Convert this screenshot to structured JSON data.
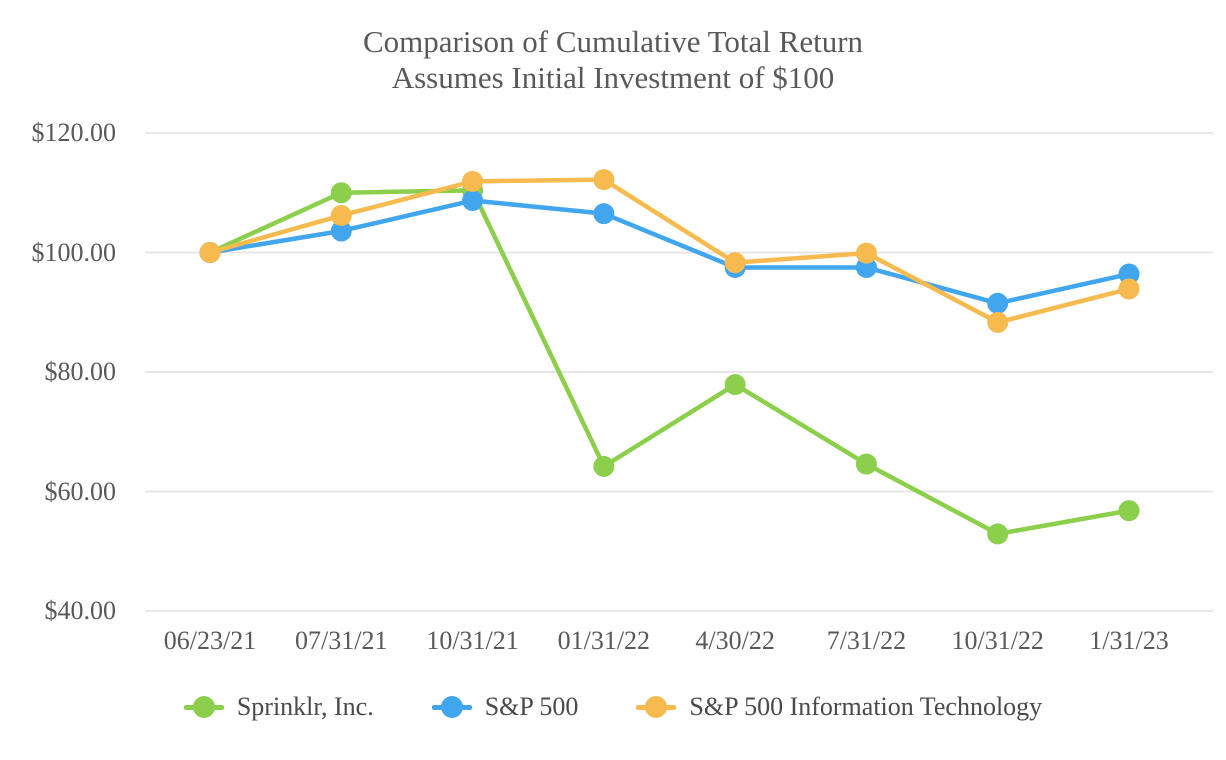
{
  "title": {
    "line1": "Comparison of Cumulative Total Return",
    "line2": "Assumes Initial Investment of $100"
  },
  "chart_data": {
    "type": "line",
    "title": "Comparison of Cumulative Total Return",
    "subtitle": "Assumes Initial Investment of $100",
    "categories": [
      "06/23/21",
      "07/31/21",
      "10/31/21",
      "01/31/22",
      "4/30/22",
      "7/31/22",
      "10/31/22",
      "1/31/23"
    ],
    "series": [
      {
        "name": "Sprinklr, Inc.",
        "color": "#8CCF4C",
        "values": [
          100,
          110.0,
          110.4,
          64.2,
          77.9,
          64.6,
          52.9,
          56.8
        ]
      },
      {
        "name": "S&P 500",
        "color": "#42A6EF",
        "values": [
          100,
          103.6,
          108.7,
          106.5,
          97.5,
          97.5,
          91.5,
          96.4
        ]
      },
      {
        "name": "S&P 500 Information Technology",
        "color": "#F7BA4E",
        "values": [
          100,
          106.2,
          111.9,
          112.2,
          98.3,
          99.9,
          88.3,
          93.9
        ]
      }
    ],
    "y_axis": {
      "min": 40,
      "max": 120,
      "tick_values": [
        120,
        100,
        80,
        60,
        40
      ],
      "tick_labels": [
        "$120.00",
        "$100.00",
        "$80.00",
        "$60.00",
        "$40.00"
      ]
    },
    "x_axis": {
      "label": ""
    },
    "grid": true,
    "legend_position": "bottom",
    "marker": "circle",
    "colors": {
      "text": "#595959",
      "legend_text": "#4a4a4a",
      "gridline": "#E4E4E4",
      "background": "#FFFFFF"
    }
  }
}
